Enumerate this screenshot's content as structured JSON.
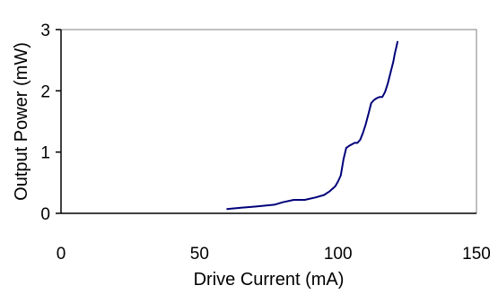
{
  "chart_data": {
    "type": "line",
    "title": "",
    "xlabel": "Drive Current (mA)",
    "ylabel": "Output Power (mW)",
    "xlim": [
      0,
      150
    ],
    "ylim": [
      0,
      3
    ],
    "xticks": [
      0,
      50,
      100,
      150
    ],
    "yticks": [
      0,
      1,
      2,
      3
    ],
    "grid": false,
    "legend": "none",
    "series": [
      {
        "color": "#00007a",
        "x": [
          60,
          65,
          70,
          77,
          80,
          84,
          88,
          92,
          95,
          97,
          99,
          100,
          101,
          102,
          103,
          104,
          106,
          107,
          108,
          109,
          110,
          111,
          112,
          113,
          114,
          115,
          116,
          117,
          118,
          119,
          120,
          120.5,
          121,
          121.5
        ],
        "y": [
          0.07,
          0.09,
          0.11,
          0.14,
          0.18,
          0.22,
          0.22,
          0.26,
          0.3,
          0.36,
          0.44,
          0.52,
          0.62,
          0.88,
          1.07,
          1.1,
          1.15,
          1.15,
          1.2,
          1.31,
          1.45,
          1.62,
          1.8,
          1.85,
          1.88,
          1.9,
          1.9,
          1.98,
          2.12,
          2.3,
          2.48,
          2.6,
          2.7,
          2.8
        ]
      }
    ]
  }
}
